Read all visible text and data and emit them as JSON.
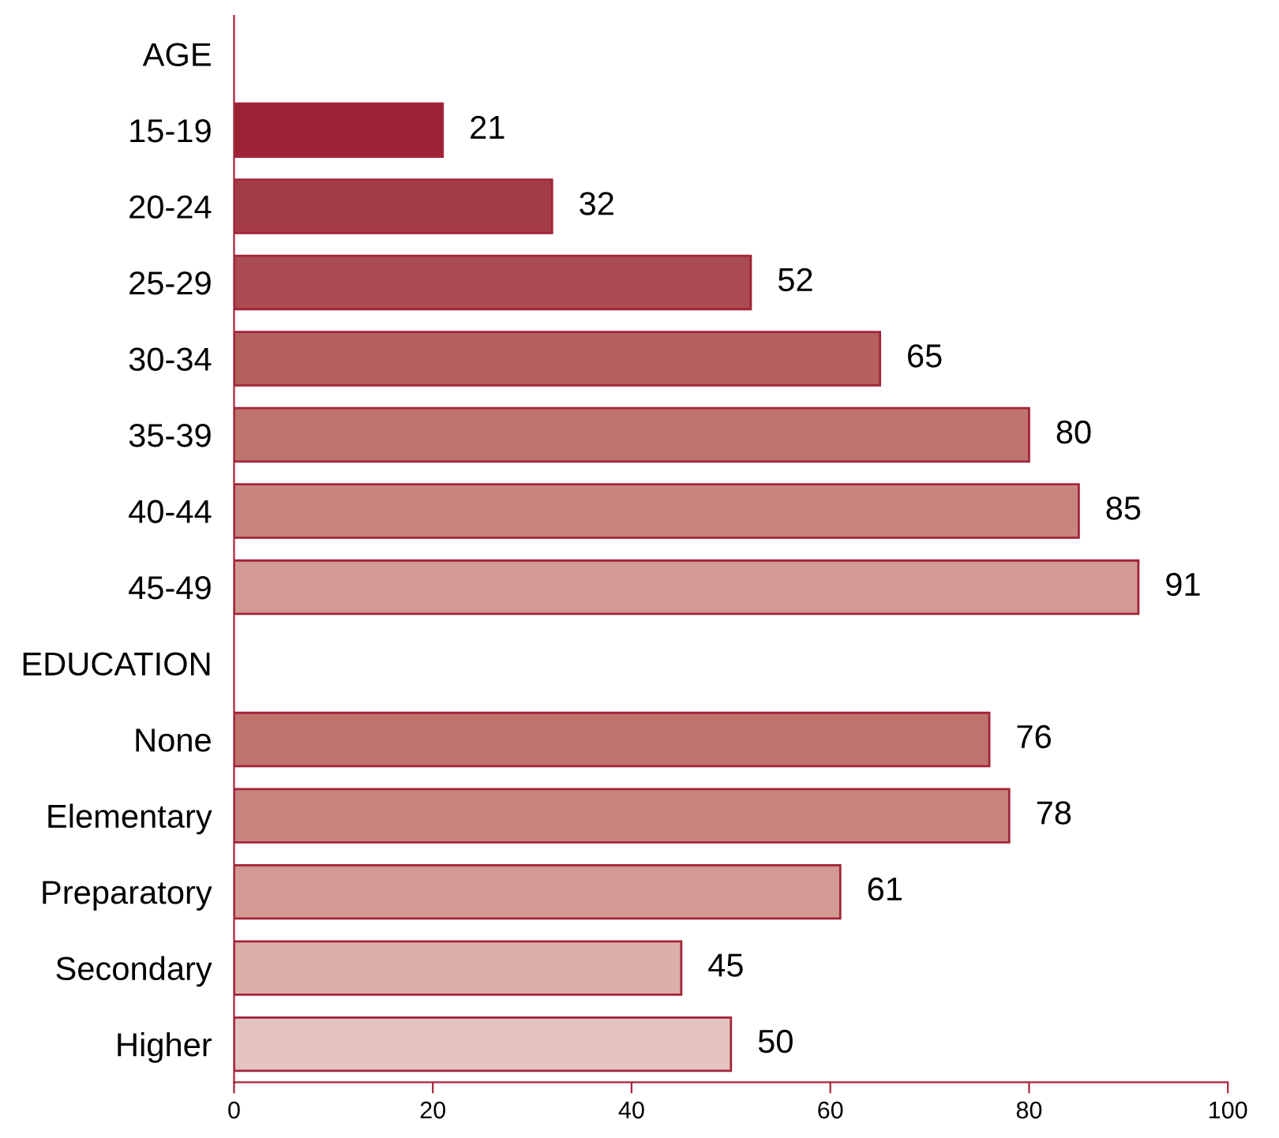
{
  "chart_data": {
    "type": "bar",
    "orientation": "horizontal",
    "categories": [
      "AGE",
      "15-19",
      "20-24",
      "25-29",
      "30-34",
      "35-39",
      "40-44",
      "45-49",
      "EDUCATION",
      "None",
      "Elementary",
      "Preparatory",
      "Secondary",
      "Higher"
    ],
    "values": [
      null,
      21,
      32,
      52,
      65,
      80,
      85,
      91,
      null,
      76,
      78,
      61,
      45,
      50
    ],
    "colors": [
      "#9b2335",
      "#9b2335",
      "#a33c47",
      "#ab4b52",
      "#b3605f",
      "#bf736f",
      "#c8857f",
      "#d29a93",
      "#bf736f",
      "#bf736f",
      "#c8857f",
      "#d29a93",
      "#dcaea8",
      "#e5c4bf"
    ],
    "xlim": [
      0,
      100
    ],
    "xticks": [
      0,
      20,
      40,
      60,
      80,
      100
    ],
    "data_labels": true,
    "grid": false,
    "legend": false
  }
}
